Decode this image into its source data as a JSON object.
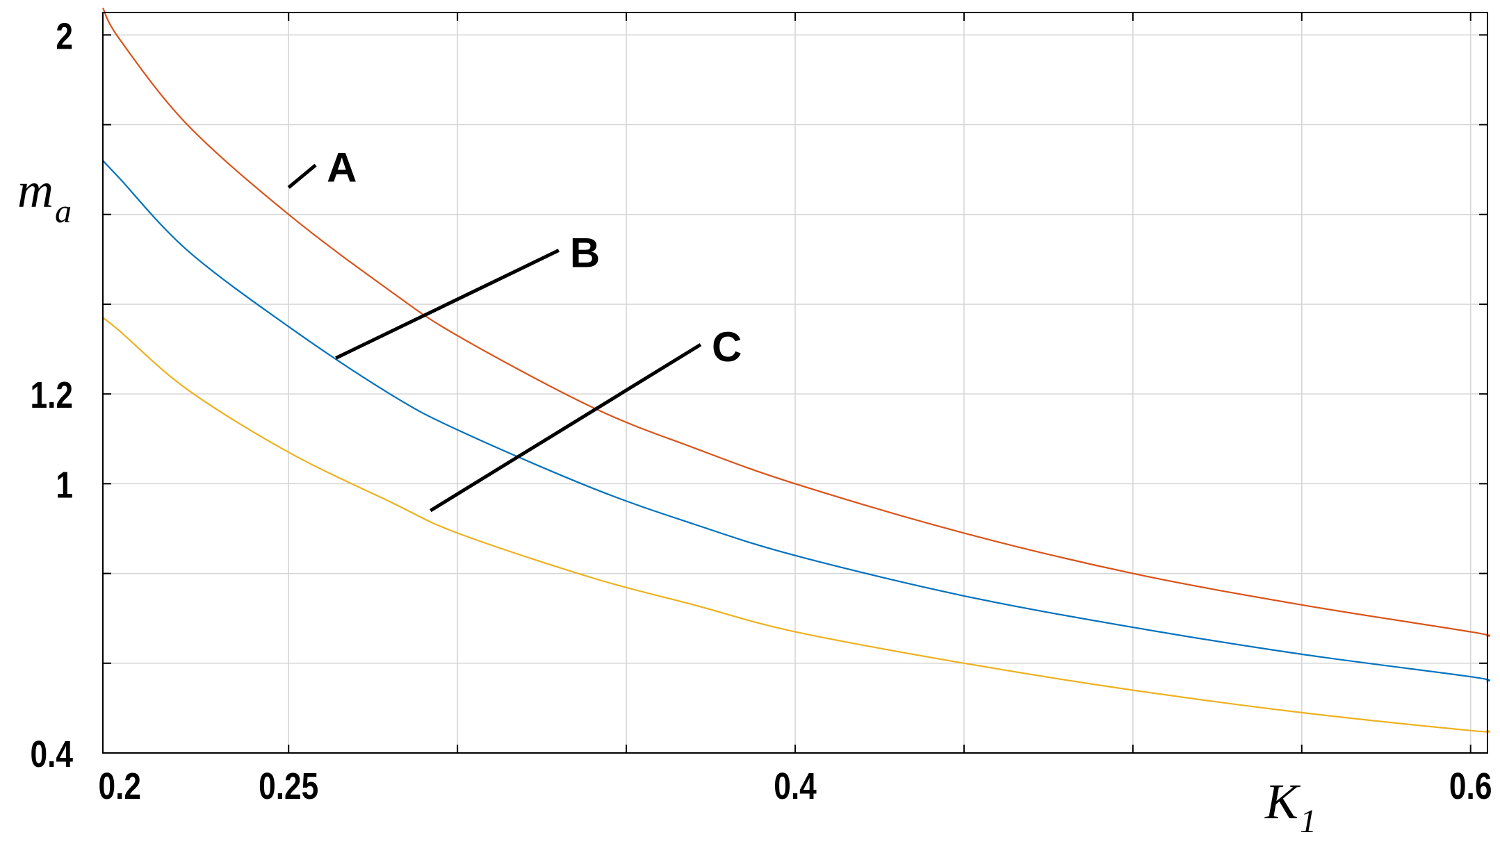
{
  "chart_data": {
    "type": "line",
    "title": "",
    "xlabel": "K",
    "xlabel_sub": "1",
    "ylabel": "m",
    "ylabel_sub": "a",
    "xlim": [
      0.195,
      0.605
    ],
    "ylim": [
      0.4,
      2.05
    ],
    "grid": true,
    "x_ticks": [
      0.2,
      0.25,
      0.4,
      0.6
    ],
    "x_tick_labels": [
      "0.2",
      "0.25",
      "0.4",
      "0.6"
    ],
    "y_ticks": [
      0.4,
      1,
      1.2,
      2
    ],
    "y_tick_labels": [
      "0.4",
      "1",
      "1.2",
      "2"
    ],
    "x_grid": [
      0.25,
      0.3,
      0.35,
      0.4,
      0.45,
      0.5,
      0.55,
      0.6
    ],
    "y_grid": [
      0.4,
      0.6,
      0.8,
      1.0,
      1.2,
      1.4,
      1.6,
      1.8,
      2.0
    ],
    "x": [
      0.195,
      0.2,
      0.22,
      0.25,
      0.28,
      0.3,
      0.34,
      0.37,
      0.4,
      0.45,
      0.5,
      0.55,
      0.6,
      0.605
    ],
    "series": [
      {
        "label": "A",
        "color": "#d95319",
        "values": [
          2.06,
          1.99,
          1.8,
          1.6,
          1.43,
          1.33,
          1.17,
          1.08,
          1.0,
          0.89,
          0.8,
          0.73,
          0.67,
          0.66
        ]
      },
      {
        "label": "B",
        "color": "#0072bd",
        "values": [
          1.72,
          1.68,
          1.52,
          1.35,
          1.2,
          1.12,
          0.99,
          0.91,
          0.84,
          0.75,
          0.68,
          0.62,
          0.57,
          0.56
        ]
      },
      {
        "label": "C",
        "color": "#edb120",
        "values": [
          1.37,
          1.34,
          1.21,
          1.07,
          0.96,
          0.89,
          0.79,
          0.73,
          0.67,
          0.6,
          0.54,
          0.49,
          0.45,
          0.45
        ]
      }
    ],
    "annotations": [
      {
        "text": "A",
        "target_x": 0.25,
        "target_y": 1.66,
        "label_x": 0.258,
        "label_y": 1.71
      },
      {
        "text": "B",
        "target_x": 0.264,
        "target_y": 1.28,
        "label_x": 0.33,
        "label_y": 1.52
      },
      {
        "text": "C",
        "target_x": 0.292,
        "target_y": 0.94,
        "label_x": 0.372,
        "label_y": 1.31
      }
    ]
  }
}
